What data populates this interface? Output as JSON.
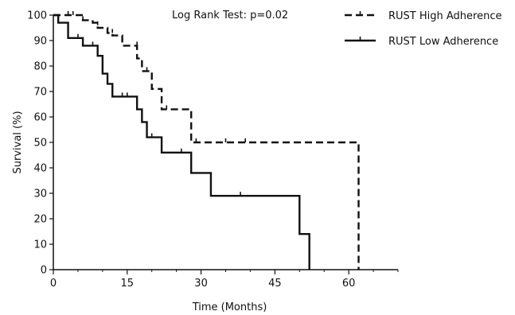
{
  "chart_data": {
    "type": "line",
    "title": "",
    "xlabel": "Time (Months)",
    "ylabel": "Survival (%)",
    "xlim": [
      0,
      70
    ],
    "ylim": [
      0,
      100
    ],
    "xticks": [
      0,
      15,
      30,
      45,
      60
    ],
    "yticks": [
      0,
      10,
      20,
      30,
      40,
      50,
      60,
      70,
      80,
      90,
      100
    ],
    "annotation": "Log Rank Test: p=0.02",
    "grid": false,
    "legend_position": "top-right",
    "series": [
      {
        "name": "RUST High Adherence",
        "style": "dashed",
        "color": "#111111",
        "steps": [
          [
            0,
            100
          ],
          [
            6,
            98
          ],
          [
            8,
            97
          ],
          [
            9,
            95
          ],
          [
            11,
            93
          ],
          [
            12,
            92
          ],
          [
            14,
            88
          ],
          [
            17,
            83
          ],
          [
            18,
            78
          ],
          [
            20,
            71
          ],
          [
            22,
            63
          ],
          [
            28,
            50
          ],
          [
            62,
            0
          ]
        ],
        "censored": [
          [
            3,
            100
          ],
          [
            4,
            100
          ],
          [
            6,
            98
          ],
          [
            9,
            96
          ],
          [
            12,
            93
          ],
          [
            17,
            88
          ],
          [
            19,
            78
          ],
          [
            23,
            63
          ],
          [
            29,
            50
          ],
          [
            35,
            50
          ],
          [
            39,
            50
          ]
        ]
      },
      {
        "name": "RUST Low Adherence",
        "style": "solid",
        "color": "#111111",
        "steps": [
          [
            0,
            100
          ],
          [
            1,
            97
          ],
          [
            3,
            91
          ],
          [
            6,
            88
          ],
          [
            9,
            84
          ],
          [
            10,
            77
          ],
          [
            11,
            73
          ],
          [
            12,
            68
          ],
          [
            17,
            63
          ],
          [
            18,
            58
          ],
          [
            19,
            52
          ],
          [
            22,
            46
          ],
          [
            28,
            38
          ],
          [
            32,
            29
          ],
          [
            50,
            14
          ],
          [
            52,
            0
          ]
        ],
        "censored": [
          [
            5,
            91
          ],
          [
            8,
            88
          ],
          [
            14,
            68
          ],
          [
            15,
            68
          ],
          [
            20,
            52
          ],
          [
            26,
            46
          ],
          [
            38,
            29
          ]
        ]
      }
    ]
  }
}
